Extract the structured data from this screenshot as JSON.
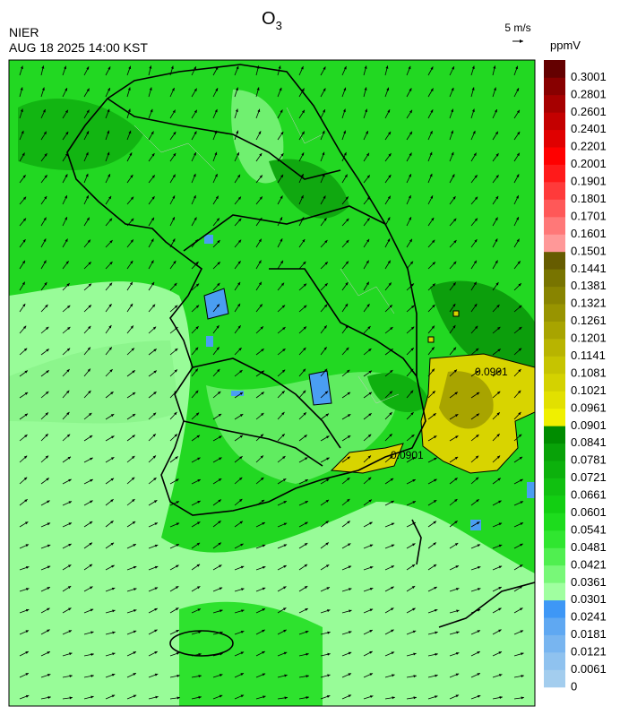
{
  "header": {
    "title": "O",
    "title_subscript": "3",
    "source": "NIER",
    "datetime": "AUG 18 2025 14:00 KST",
    "wind_scale": "5 m/s"
  },
  "legend": {
    "unit": "ppmV",
    "levels": [
      "0",
      "0.0061",
      "0.0121",
      "0.0181",
      "0.0241",
      "0.0301",
      "0.0361",
      "0.0421",
      "0.0481",
      "0.0541",
      "0.0601",
      "0.0661",
      "0.0721",
      "0.0781",
      "0.0841",
      "0.0901",
      "0.0961",
      "0.1021",
      "0.1081",
      "0.1141",
      "0.1201",
      "0.1261",
      "0.1321",
      "0.1381",
      "0.1441",
      "0.1501",
      "0.1601",
      "0.1701",
      "0.1801",
      "0.1901",
      "0.2001",
      "0.2201",
      "0.2401",
      "0.2601",
      "0.2801",
      "0.3001"
    ],
    "colors": [
      "#a3cdee",
      "#8fc2ef",
      "#78b5f0",
      "#5fa8f2",
      "#3e97f6",
      "#a0ffa0",
      "#78f878",
      "#50ef50",
      "#30e630",
      "#1ddc1d",
      "#12cf12",
      "#10c010",
      "#0cb10c",
      "#08a208",
      "#008c00",
      "#f0f000",
      "#e2e000",
      "#d4d200",
      "#c6c400",
      "#b8b400",
      "#a8a400",
      "#989400",
      "#888400",
      "#787400",
      "#665c00",
      "#ff9898",
      "#ff7878",
      "#ff5858",
      "#ff3a3a",
      "#ff1a1a",
      "#ff0000",
      "#e00000",
      "#c40000",
      "#a60000",
      "#880000",
      "#640000"
    ]
  },
  "map": {
    "contour_labels": [
      "0.0901",
      "0.0901"
    ]
  }
}
